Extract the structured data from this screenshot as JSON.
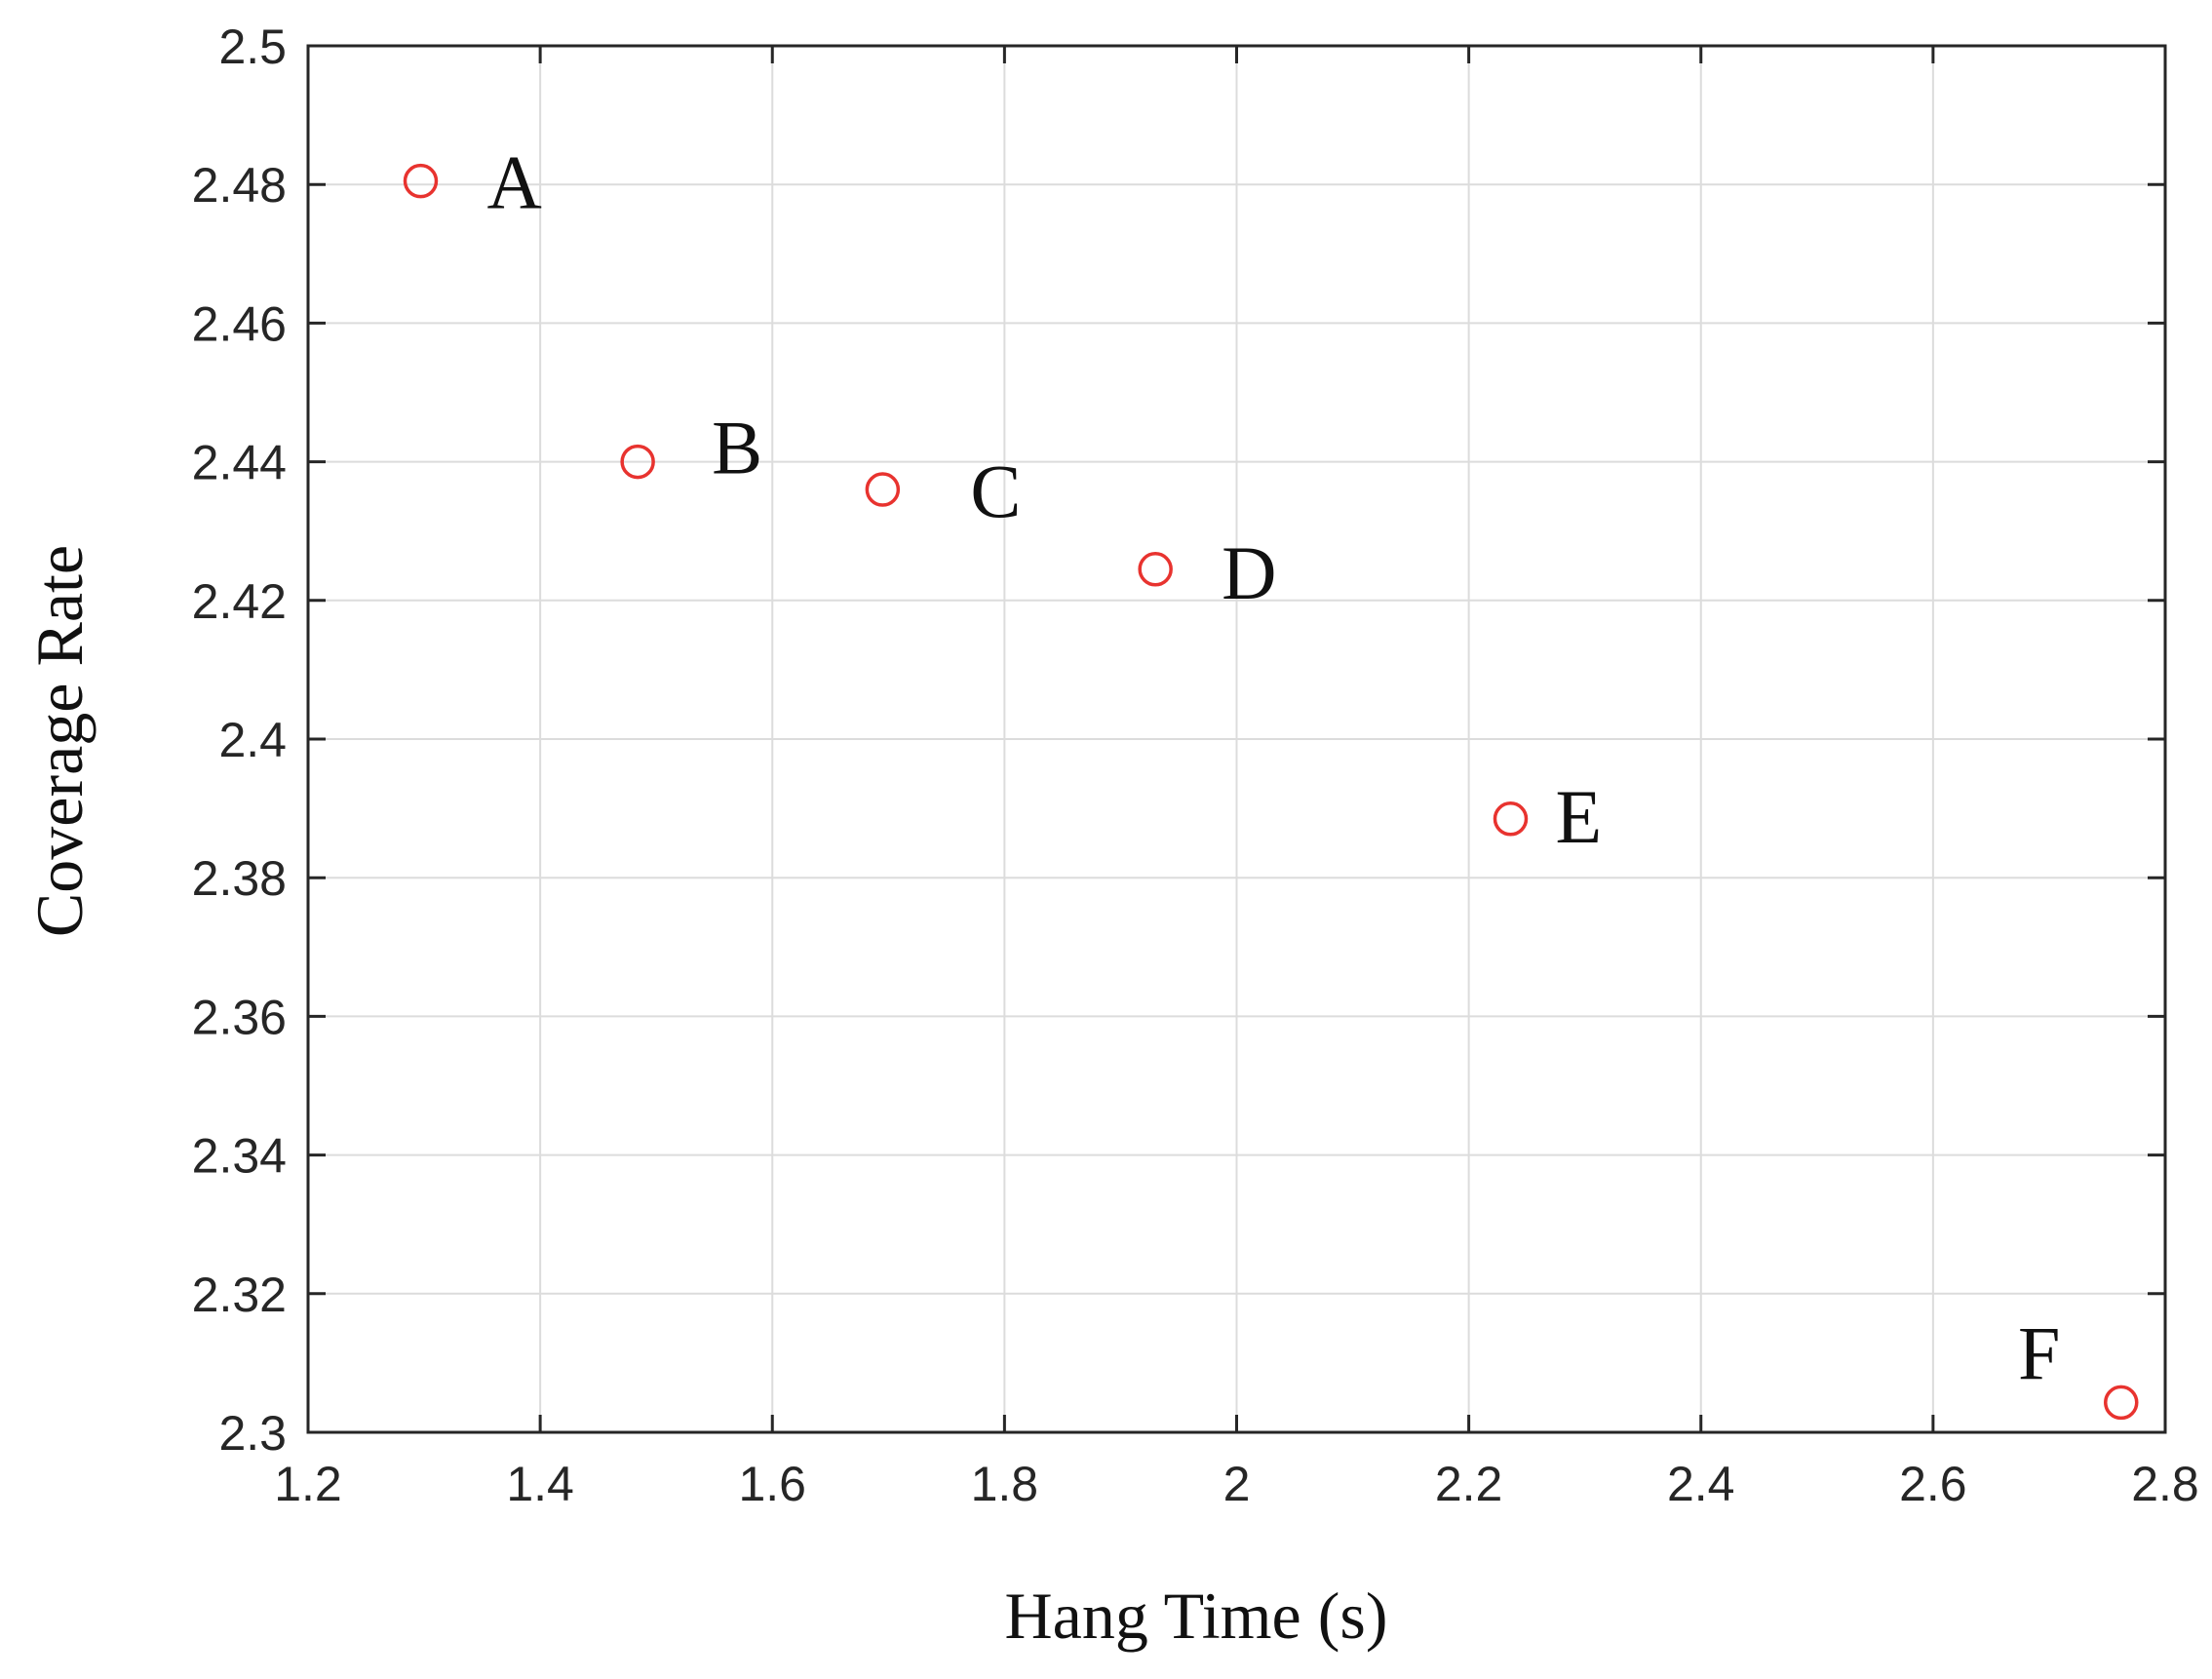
{
  "chart_data": {
    "type": "scatter",
    "xlabel": "Hang Time (s)",
    "ylabel": "Coverage Rate",
    "xlim": [
      1.2,
      2.8
    ],
    "ylim": [
      2.3,
      2.5
    ],
    "xticks": [
      1.2,
      1.4,
      1.6,
      1.8,
      2,
      2.2,
      2.4,
      2.6,
      2.8
    ],
    "xtick_labels": [
      "1.2",
      "1.4",
      "1.6",
      "1.8",
      "2",
      "2.2",
      "2.4",
      "2.6",
      "2.8"
    ],
    "yticks": [
      2.3,
      2.32,
      2.34,
      2.36,
      2.38,
      2.4,
      2.42,
      2.44,
      2.46,
      2.48,
      2.5
    ],
    "ytick_labels": [
      "2.3",
      "2.32",
      "2.34",
      "2.36",
      "2.38",
      "2.4",
      "2.42",
      "2.44",
      "2.46",
      "2.48",
      "2.5"
    ],
    "grid": true,
    "marker": "open-circle",
    "marker_color": "#e8332f",
    "points": [
      {
        "label": "A",
        "x": 1.297,
        "y": 2.4805
      },
      {
        "label": "B",
        "x": 1.484,
        "y": 2.44
      },
      {
        "label": "C",
        "x": 1.695,
        "y": 2.436
      },
      {
        "label": "D",
        "x": 1.93,
        "y": 2.4245
      },
      {
        "label": "E",
        "x": 2.236,
        "y": 2.3885
      },
      {
        "label": "F",
        "x": 2.762,
        "y": 2.3043
      }
    ]
  }
}
